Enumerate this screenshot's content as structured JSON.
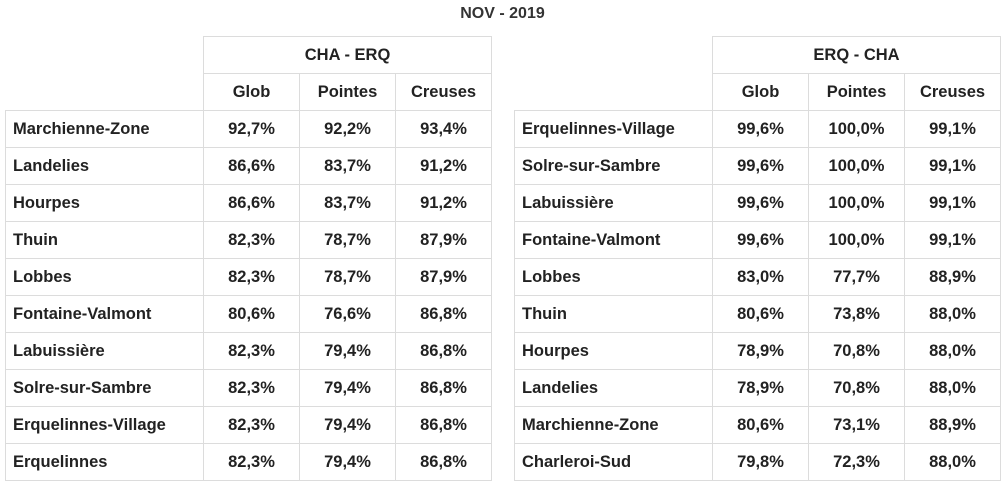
{
  "title": "NOV - 2019",
  "left_table": {
    "group_header": "CHA - ERQ",
    "columns": [
      "Glob",
      "Pointes",
      "Creuses"
    ],
    "rows": [
      {
        "station": "Marchienne-Zone",
        "values": [
          "92,7%",
          "92,2%",
          "93,4%"
        ]
      },
      {
        "station": "Landelies",
        "values": [
          "86,6%",
          "83,7%",
          "91,2%"
        ]
      },
      {
        "station": "Hourpes",
        "values": [
          "86,6%",
          "83,7%",
          "91,2%"
        ]
      },
      {
        "station": "Thuin",
        "values": [
          "82,3%",
          "78,7%",
          "87,9%"
        ]
      },
      {
        "station": "Lobbes",
        "values": [
          "82,3%",
          "78,7%",
          "87,9%"
        ]
      },
      {
        "station": "Fontaine-Valmont",
        "values": [
          "80,6%",
          "76,6%",
          "86,8%"
        ]
      },
      {
        "station": "Labuissière",
        "values": [
          "82,3%",
          "79,4%",
          "86,8%"
        ]
      },
      {
        "station": "Solre-sur-Sambre",
        "values": [
          "82,3%",
          "79,4%",
          "86,8%"
        ]
      },
      {
        "station": "Erquelinnes-Village",
        "values": [
          "82,3%",
          "79,4%",
          "86,8%"
        ]
      },
      {
        "station": "Erquelinnes",
        "values": [
          "82,3%",
          "79,4%",
          "86,8%"
        ]
      }
    ]
  },
  "right_table": {
    "group_header": "ERQ - CHA",
    "columns": [
      "Glob",
      "Pointes",
      "Creuses"
    ],
    "rows": [
      {
        "station": "Erquelinnes-Village",
        "values": [
          "99,6%",
          "100,0%",
          "99,1%"
        ]
      },
      {
        "station": "Solre-sur-Sambre",
        "values": [
          "99,6%",
          "100,0%",
          "99,1%"
        ]
      },
      {
        "station": "Labuissière",
        "values": [
          "99,6%",
          "100,0%",
          "99,1%"
        ]
      },
      {
        "station": "Fontaine-Valmont",
        "values": [
          "99,6%",
          "100,0%",
          "99,1%"
        ]
      },
      {
        "station": "Lobbes",
        "values": [
          "83,0%",
          "77,7%",
          "88,9%"
        ]
      },
      {
        "station": "Thuin",
        "values": [
          "80,6%",
          "73,8%",
          "88,0%"
        ]
      },
      {
        "station": "Hourpes",
        "values": [
          "78,9%",
          "70,8%",
          "88,0%"
        ]
      },
      {
        "station": "Landelies",
        "values": [
          "78,9%",
          "70,8%",
          "88,0%"
        ]
      },
      {
        "station": "Marchienne-Zone",
        "values": [
          "80,6%",
          "73,1%",
          "88,9%"
        ]
      },
      {
        "station": "Charleroi-Sud",
        "values": [
          "79,8%",
          "72,3%",
          "88,0%"
        ]
      }
    ]
  }
}
